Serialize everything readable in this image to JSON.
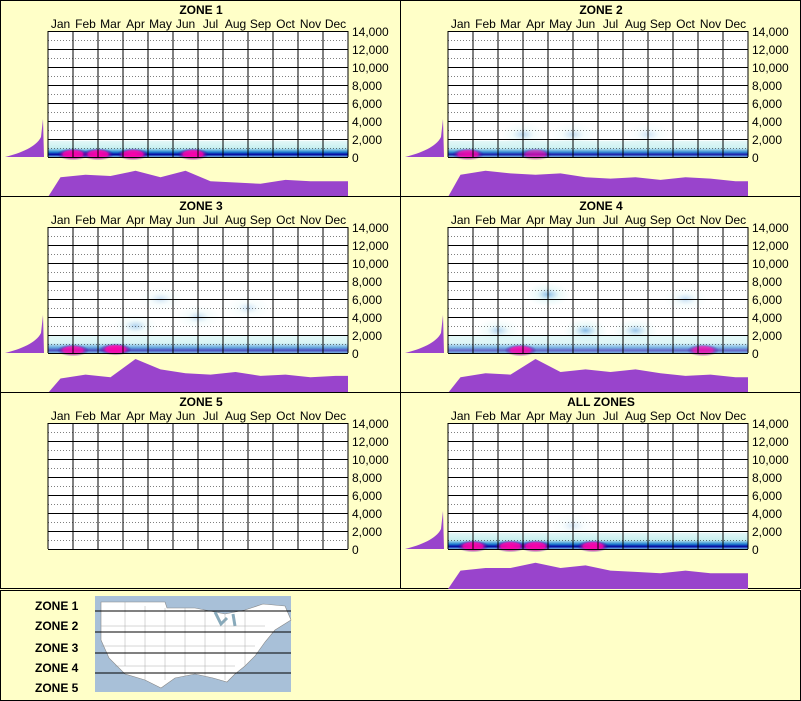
{
  "months": [
    "Jan",
    "Feb",
    "Mar",
    "Apr",
    "May",
    "Jun",
    "Jul",
    "Aug",
    "Sep",
    "Oct",
    "Nov",
    "Dec"
  ],
  "y_ticks": [
    "14,000",
    "12,000",
    "10,000",
    "8,000",
    "6,000",
    "4,000",
    "2,000",
    "0"
  ],
  "colors": {
    "background": "#ffffc8",
    "profile": "#9944cc",
    "heat_low": "#c8f0f0",
    "heat_mid": "#2080d0",
    "heat_high": "#0000a0",
    "heat_peak": "#ff00aa"
  },
  "chart_data": [
    {
      "type": "heatmap",
      "title": "ZONE 1",
      "xlabel": "",
      "ylabel": "",
      "ylim": [
        0,
        14000
      ],
      "x": [
        "Jan",
        "Feb",
        "Mar",
        "Apr",
        "May",
        "Jun",
        "Jul",
        "Aug",
        "Sep",
        "Oct",
        "Nov",
        "Dec"
      ],
      "monthly_profile": [
        0.45,
        0.55,
        0.5,
        0.7,
        0.45,
        0.7,
        0.3,
        0.25,
        0.2,
        0.35,
        0.3,
        0.3
      ],
      "elevation_profile": [
        0.05,
        0.1,
        0.2,
        0.4,
        0.8
      ],
      "hotspots": [
        {
          "month": 1,
          "elev": 300,
          "i": 1
        },
        {
          "month": 2,
          "elev": 300,
          "i": 1
        },
        {
          "month": 3.4,
          "elev": 300,
          "i": 1
        },
        {
          "month": 5.8,
          "elev": 300,
          "i": 1
        }
      ],
      "blobs": [],
      "band": {
        "top": 1800,
        "bottom": 0,
        "strength": 1
      }
    },
    {
      "type": "heatmap",
      "title": "ZONE 2",
      "xlabel": "",
      "ylabel": "",
      "ylim": [
        0,
        14000
      ],
      "x": [
        "Jan",
        "Feb",
        "Mar",
        "Apr",
        "May",
        "Jun",
        "Jul",
        "Aug",
        "Sep",
        "Oct",
        "Nov",
        "Dec"
      ],
      "monthly_profile": [
        0.55,
        0.7,
        0.6,
        0.55,
        0.6,
        0.45,
        0.4,
        0.45,
        0.35,
        0.45,
        0.4,
        0.3
      ],
      "elevation_profile": [
        0.05,
        0.1,
        0.2,
        0.4,
        0.8
      ],
      "hotspots": [
        {
          "month": 0.8,
          "elev": 300,
          "i": 0.9
        },
        {
          "month": 3.5,
          "elev": 300,
          "i": 0.7
        }
      ],
      "blobs": [
        {
          "month": 3,
          "elev": 2500,
          "i": 0.35
        },
        {
          "month": 5,
          "elev": 2500,
          "i": 0.3
        },
        {
          "month": 8,
          "elev": 2500,
          "i": 0.25
        }
      ],
      "band": {
        "top": 1800,
        "bottom": 0,
        "strength": 0.9
      }
    },
    {
      "type": "heatmap",
      "title": "ZONE 3",
      "xlabel": "",
      "ylabel": "",
      "ylim": [
        0,
        14000
      ],
      "x": [
        "Jan",
        "Feb",
        "Mar",
        "Apr",
        "May",
        "Jun",
        "Jul",
        "Aug",
        "Sep",
        "Oct",
        "Nov",
        "Dec"
      ],
      "monthly_profile": [
        0.25,
        0.4,
        0.3,
        1.0,
        0.6,
        0.45,
        0.4,
        0.5,
        0.35,
        0.4,
        0.3,
        0.35
      ],
      "elevation_profile": [
        0.05,
        0.1,
        0.25,
        0.5,
        0.9
      ],
      "hotspots": [
        {
          "month": 1,
          "elev": 300,
          "i": 0.9
        },
        {
          "month": 2.7,
          "elev": 400,
          "i": 1
        }
      ],
      "blobs": [
        {
          "month": 4.5,
          "elev": 6000,
          "i": 0.25
        },
        {
          "month": 6,
          "elev": 4000,
          "i": 0.3
        },
        {
          "month": 8,
          "elev": 5000,
          "i": 0.25
        },
        {
          "month": 3.5,
          "elev": 3000,
          "i": 0.4
        }
      ],
      "band": {
        "top": 2000,
        "bottom": 0,
        "strength": 0.7
      }
    },
    {
      "type": "heatmap",
      "title": "ZONE 4",
      "xlabel": "",
      "ylabel": "",
      "ylim": [
        0,
        14000
      ],
      "x": [
        "Jan",
        "Feb",
        "Mar",
        "Apr",
        "May",
        "Jun",
        "Jul",
        "Aug",
        "Sep",
        "Oct",
        "Nov",
        "Dec"
      ],
      "monthly_profile": [
        0.3,
        0.45,
        0.4,
        1.0,
        0.5,
        0.6,
        0.5,
        0.6,
        0.45,
        0.35,
        0.4,
        0.3
      ],
      "elevation_profile": [
        0.05,
        0.1,
        0.25,
        0.5,
        0.9
      ],
      "hotspots": [
        {
          "month": 2.9,
          "elev": 300,
          "i": 0.9
        },
        {
          "month": 10.2,
          "elev": 300,
          "i": 0.8
        }
      ],
      "blobs": [
        {
          "month": 4,
          "elev": 6500,
          "i": 0.6
        },
        {
          "month": 5.5,
          "elev": 2500,
          "i": 0.6
        },
        {
          "month": 7.5,
          "elev": 2500,
          "i": 0.5
        },
        {
          "month": 2,
          "elev": 2500,
          "i": 0.4
        },
        {
          "month": 9.5,
          "elev": 6000,
          "i": 0.3
        }
      ],
      "band": {
        "top": 2000,
        "bottom": 0,
        "strength": 0.6
      }
    },
    {
      "type": "heatmap",
      "title": "ZONE 5",
      "xlabel": "",
      "ylabel": "",
      "ylim": [
        0,
        14000
      ],
      "x": [
        "Jan",
        "Feb",
        "Mar",
        "Apr",
        "May",
        "Jun",
        "Jul",
        "Aug",
        "Sep",
        "Oct",
        "Nov",
        "Dec"
      ],
      "monthly_profile": [],
      "elevation_profile": [],
      "hotspots": [],
      "blobs": [],
      "band": {
        "top": 0,
        "bottom": 0,
        "strength": 0
      }
    },
    {
      "type": "heatmap",
      "title": "ALL ZONES",
      "xlabel": "",
      "ylabel": "",
      "ylim": [
        0,
        14000
      ],
      "x": [
        "Jan",
        "Feb",
        "Mar",
        "Apr",
        "May",
        "Jun",
        "Jul",
        "Aug",
        "Sep",
        "Oct",
        "Nov",
        "Dec"
      ],
      "monthly_profile": [
        0.4,
        0.5,
        0.5,
        0.7,
        0.5,
        0.6,
        0.4,
        0.35,
        0.3,
        0.4,
        0.3,
        0.3
      ],
      "elevation_profile": [
        0.05,
        0.1,
        0.2,
        0.4,
        0.8
      ],
      "hotspots": [
        {
          "month": 1,
          "elev": 300,
          "i": 1
        },
        {
          "month": 2.5,
          "elev": 300,
          "i": 1
        },
        {
          "month": 3.5,
          "elev": 300,
          "i": 1
        },
        {
          "month": 5.8,
          "elev": 300,
          "i": 1
        }
      ],
      "blobs": [
        {
          "month": 5,
          "elev": 2600,
          "i": 0.2
        }
      ],
      "band": {
        "top": 1800,
        "bottom": 0,
        "strength": 1
      }
    }
  ],
  "legend": {
    "zones": [
      "ZONE 1",
      "ZONE 2",
      "ZONE 3",
      "ZONE 4",
      "ZONE 5"
    ]
  }
}
